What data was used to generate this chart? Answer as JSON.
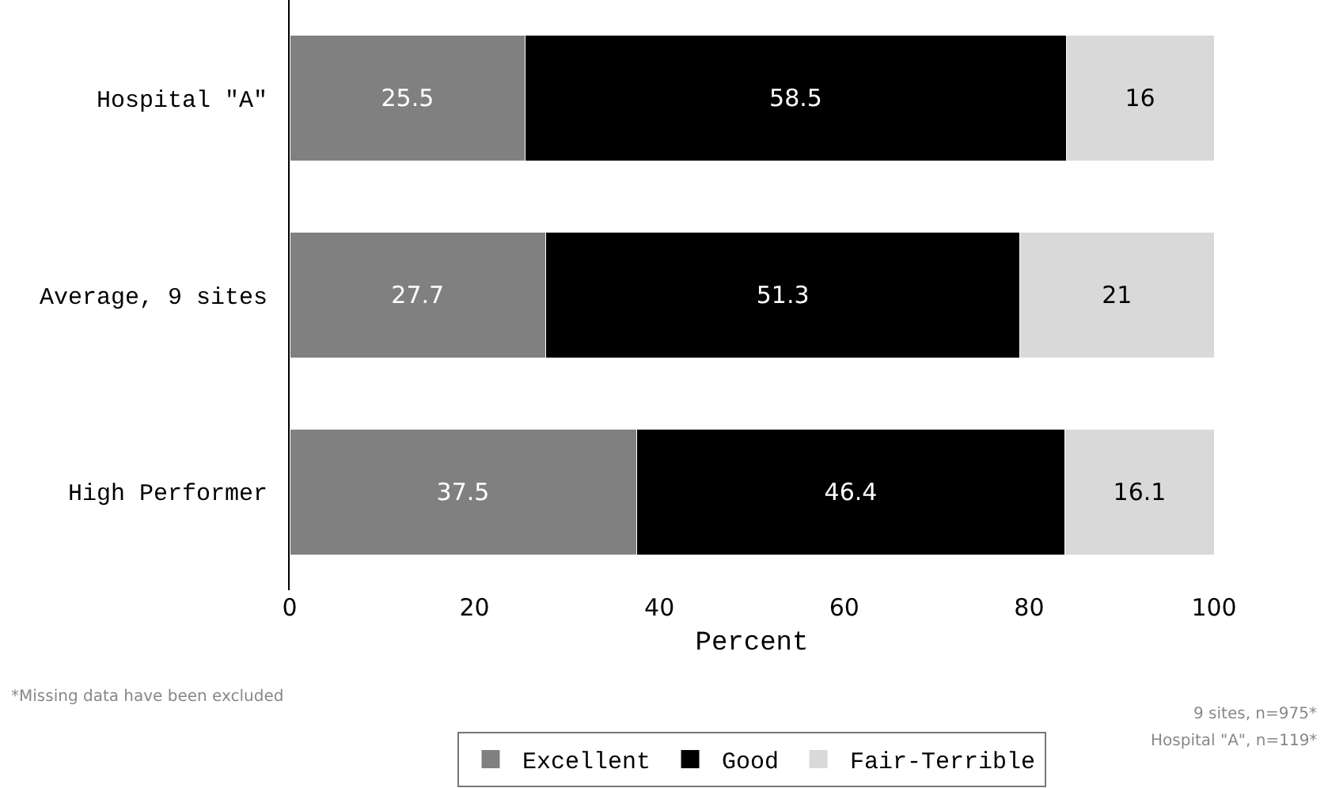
{
  "chart_data": {
    "type": "bar",
    "orientation": "horizontal",
    "stacked": true,
    "xlabel": "Percent",
    "categories": [
      "Hospital \"A\"",
      "Average, 9 sites",
      "High Performer"
    ],
    "series": [
      {
        "name": "Excellent",
        "color": "#808080",
        "values": [
          25.5,
          27.7,
          37.5
        ]
      },
      {
        "name": "Good",
        "color": "#000000",
        "values": [
          58.5,
          51.3,
          46.4
        ]
      },
      {
        "name": "Fair-Terrible",
        "color": "#d9d9d9",
        "values": [
          16,
          21,
          16.1
        ]
      }
    ],
    "xlim": [
      0,
      100
    ],
    "xticks": [
      0,
      20,
      40,
      60,
      80,
      100
    ],
    "data_labels": true,
    "legend": "bottom",
    "grid": false,
    "annotations": [
      "*Missing data have been excluded",
      "9 sites, n=975*",
      "Hospital \"A\", n=119*"
    ]
  }
}
